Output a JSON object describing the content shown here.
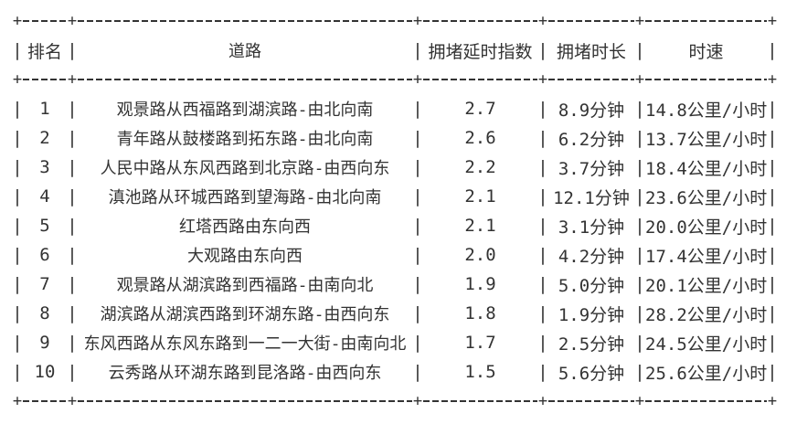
{
  "colors": {
    "text": "#333333",
    "background": "#ffffff"
  },
  "glyphs": {
    "pipe": "|",
    "plus": "+"
  },
  "chart_data": {
    "type": "table",
    "columns": [
      "排名",
      "道路",
      "拥堵延时指数",
      "拥堵时长",
      "时速"
    ],
    "rows": [
      [
        "1",
        "观景路从西福路到湖滨路-由北向南",
        "2.7",
        "8.9分钟",
        "14.8公里/小时"
      ],
      [
        "2",
        "青年路从鼓楼路到拓东路-由北向南",
        "2.6",
        "6.2分钟",
        "13.7公里/小时"
      ],
      [
        "3",
        "人民中路从东风西路到北京路-由西向东",
        "2.2",
        "3.7分钟",
        "18.4公里/小时"
      ],
      [
        "4",
        "滇池路从环城西路到望海路-由北向南",
        "2.1",
        "12.1分钟",
        "23.6公里/小时"
      ],
      [
        "5",
        "红塔西路由东向西",
        "2.1",
        "3.1分钟",
        "20.0公里/小时"
      ],
      [
        "6",
        "大观路由东向西",
        "2.0",
        "4.2分钟",
        "17.4公里/小时"
      ],
      [
        "7",
        "观景路从湖滨路到西福路-由南向北",
        "1.9",
        "5.0分钟",
        "20.1公里/小时"
      ],
      [
        "8",
        "湖滨路从湖滨西路到环湖东路-由西向东",
        "1.8",
        "1.9分钟",
        "28.2公里/小时"
      ],
      [
        "9",
        "东风西路从东风东路到一二一大街-由南向北",
        "1.7",
        "2.5分钟",
        "24.5公里/小时"
      ],
      [
        "10",
        "云秀路从环湖东路到昆洛路-由西向东",
        "1.5",
        "5.6分钟",
        "25.6公里/小时"
      ]
    ]
  }
}
